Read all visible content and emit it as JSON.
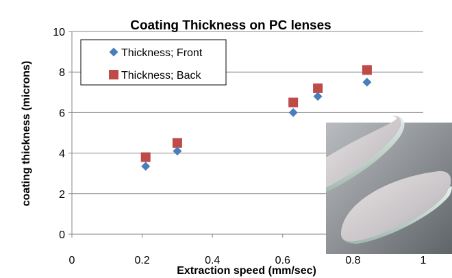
{
  "chart_data": {
    "type": "scatter",
    "title": "Coating Thickness on PC lenses",
    "xlabel": "Extraction speed (mm/sec)",
    "ylabel": "coating thickness (microns)",
    "xlim": [
      0,
      1
    ],
    "ylim": [
      0,
      10
    ],
    "x_ticks": [
      "0",
      "0.2",
      "0.4",
      "0.6",
      "0.8",
      "1"
    ],
    "y_ticks": [
      "0",
      "2",
      "4",
      "6",
      "8",
      "10"
    ],
    "grid": "horizontal",
    "legend_position": "top-left",
    "series": [
      {
        "name": "Thickness; Front",
        "marker": "diamond",
        "color": "#4a7ebb",
        "points": [
          {
            "x": 0.21,
            "y": 3.35
          },
          {
            "x": 0.3,
            "y": 4.1
          },
          {
            "x": 0.63,
            "y": 6.0
          },
          {
            "x": 0.7,
            "y": 6.8
          },
          {
            "x": 0.84,
            "y": 7.5
          }
        ]
      },
      {
        "name": "Thickness; Back",
        "marker": "square",
        "color": "#be4b48",
        "points": [
          {
            "x": 0.21,
            "y": 3.8
          },
          {
            "x": 0.3,
            "y": 4.5
          },
          {
            "x": 0.63,
            "y": 6.5
          },
          {
            "x": 0.7,
            "y": 7.2
          },
          {
            "x": 0.84,
            "y": 8.1
          }
        ]
      }
    ],
    "inset_image": "photo-of-coated-lenses"
  }
}
